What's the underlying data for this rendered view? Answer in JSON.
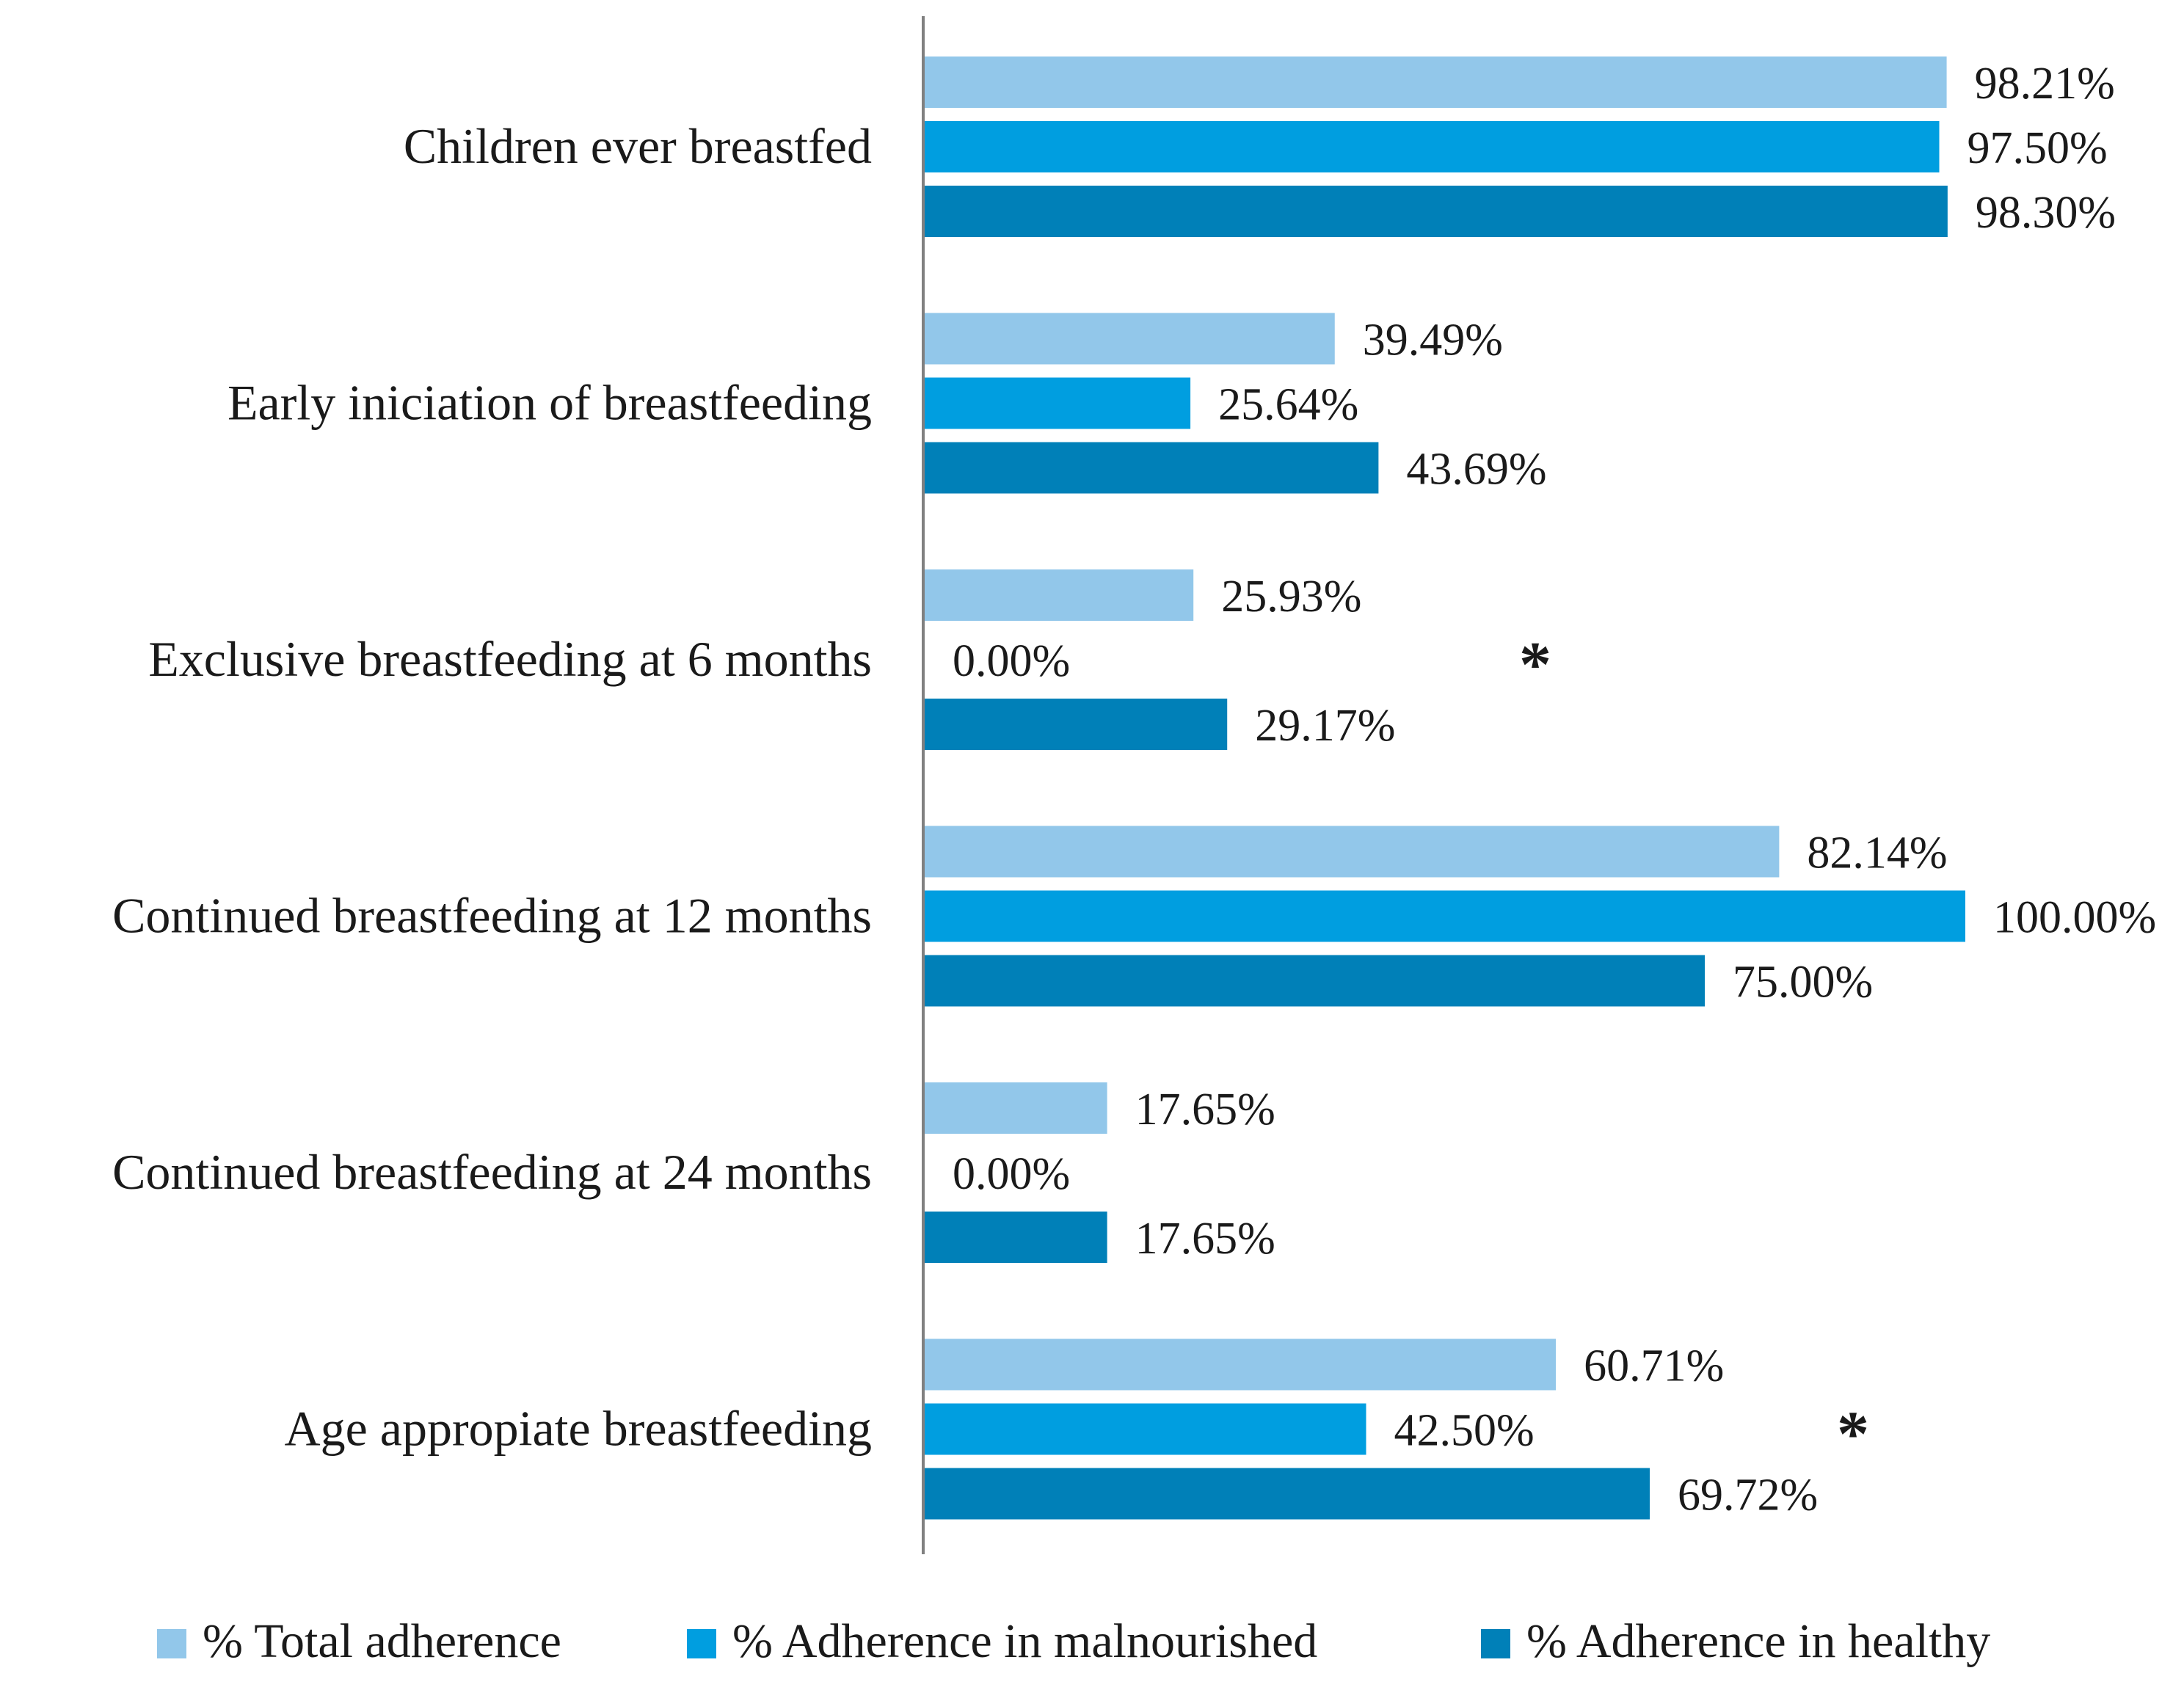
{
  "chart_data": {
    "type": "bar",
    "orientation": "horizontal",
    "categories": [
      "Children ever breastfed",
      "Early iniciation of breastfeeding",
      "Exclusive breastfeeding at 6 months",
      "Continued breastfeeding at 12 months",
      "Continued breastfeeding at 24 months",
      "Age appropiate breastfeeding"
    ],
    "series": [
      {
        "name": "% Total adherence",
        "color": "#92c7ea",
        "values": [
          98.21,
          39.49,
          25.93,
          82.14,
          17.65,
          60.71
        ],
        "labels": [
          "98.21%",
          "39.49%",
          "25.93%",
          "82.14%",
          "17.65%",
          "60.71%"
        ]
      },
      {
        "name": "% Adherence in malnourished",
        "color": "#009ee0",
        "values": [
          97.5,
          25.64,
          0.0,
          100.0,
          0.0,
          42.5
        ],
        "labels": [
          "97.50%",
          "25.64%",
          "0.00%",
          "100.00%",
          "0.00%",
          "42.50%"
        ]
      },
      {
        "name": "% Adherence in healthy",
        "color": "#0080b8",
        "values": [
          98.3,
          43.69,
          29.17,
          75.0,
          17.65,
          69.72
        ],
        "labels": [
          "98.30%",
          "43.69%",
          "29.17%",
          "75.00%",
          "17.65%",
          "69.72%"
        ]
      }
    ],
    "significance": [
      {
        "category": "Exclusive breastfeeding at 6 months",
        "symbol": "*"
      },
      {
        "category": "Age appropiate breastfeeding",
        "symbol": "*"
      }
    ],
    "xlim": [
      0,
      100
    ],
    "axis_color": "#808080",
    "legend_position": "bottom",
    "title": "",
    "xlabel": "",
    "ylabel": ""
  }
}
